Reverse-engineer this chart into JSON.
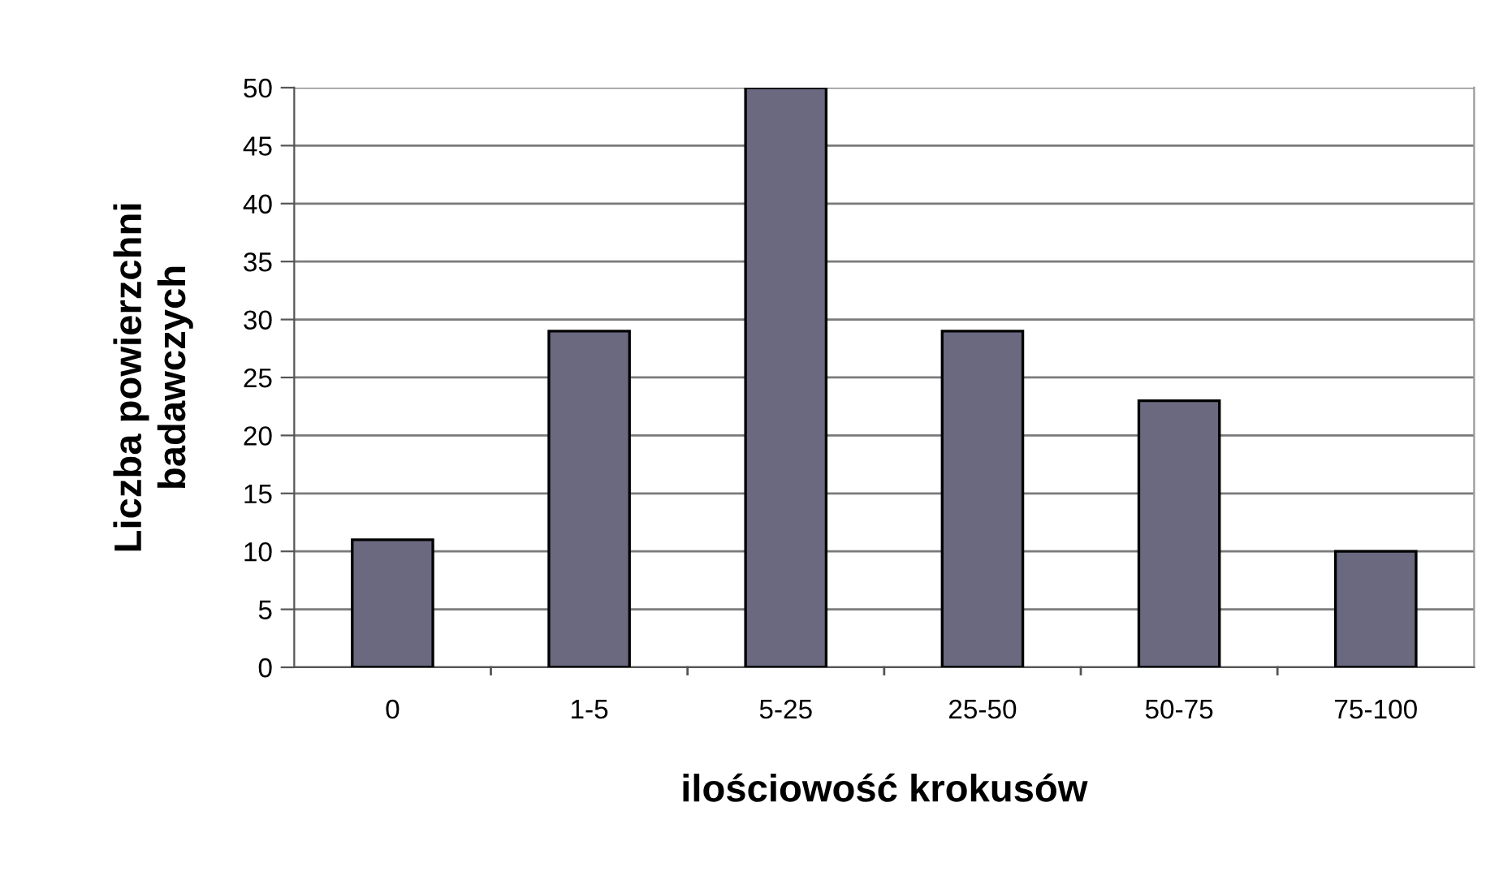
{
  "chart_data": {
    "type": "bar",
    "xlabel": "ilościowość krokusów",
    "ylabel": "Liczba powierzchni\nbadawczych",
    "categories": [
      "0",
      "1-5",
      "5-25",
      "25-50",
      "50-75",
      "75-100"
    ],
    "values": [
      11,
      29,
      50,
      29,
      23,
      10
    ],
    "color": "#6a6980",
    "ylim": [
      0,
      50
    ],
    "yticks": [
      0,
      5,
      10,
      15,
      20,
      25,
      30,
      35,
      40,
      45,
      50
    ],
    "grid": "y"
  }
}
